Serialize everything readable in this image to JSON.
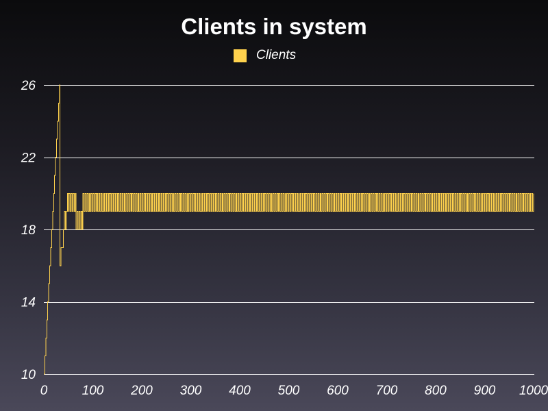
{
  "chart_data": {
    "type": "line",
    "title": "Clients in system",
    "xlabel": "",
    "ylabel": "",
    "xlim": [
      0,
      1000
    ],
    "ylim": [
      10,
      26
    ],
    "x_ticks": [
      0,
      100,
      200,
      300,
      400,
      500,
      600,
      700,
      800,
      900,
      1000
    ],
    "y_ticks": [
      10,
      14,
      18,
      22,
      26
    ],
    "grid": "horizontal",
    "legend": "top-center",
    "series": [
      {
        "name": "Clients",
        "color": "#ffd24d",
        "step": true,
        "points": [
          [
            0,
            10
          ],
          [
            2,
            11
          ],
          [
            4,
            12
          ],
          [
            6,
            13
          ],
          [
            8,
            14
          ],
          [
            10,
            15
          ],
          [
            12,
            16
          ],
          [
            14,
            17
          ],
          [
            16,
            18
          ],
          [
            18,
            19
          ],
          [
            20,
            20
          ],
          [
            22,
            21
          ],
          [
            24,
            22
          ],
          [
            26,
            23
          ],
          [
            28,
            24
          ],
          [
            30,
            25
          ],
          [
            32,
            26
          ],
          [
            33,
            16
          ],
          [
            35,
            17
          ],
          [
            38,
            17
          ],
          [
            40,
            18
          ],
          [
            42,
            19
          ],
          [
            44,
            18
          ],
          [
            46,
            19
          ],
          [
            48,
            20
          ],
          [
            50,
            19
          ],
          [
            52,
            20
          ],
          [
            54,
            19
          ],
          [
            56,
            20
          ],
          [
            58,
            19
          ],
          [
            60,
            20
          ],
          [
            62,
            19
          ],
          [
            64,
            20
          ],
          [
            66,
            18
          ],
          [
            68,
            19
          ],
          [
            70,
            18
          ],
          [
            72,
            19
          ],
          [
            74,
            18
          ],
          [
            76,
            19
          ],
          [
            78,
            18
          ],
          [
            80,
            20
          ]
        ],
        "oscillation": {
          "x_start": 80,
          "x_end": 1000,
          "low": 19,
          "high": 20,
          "period": 4
        }
      }
    ]
  }
}
